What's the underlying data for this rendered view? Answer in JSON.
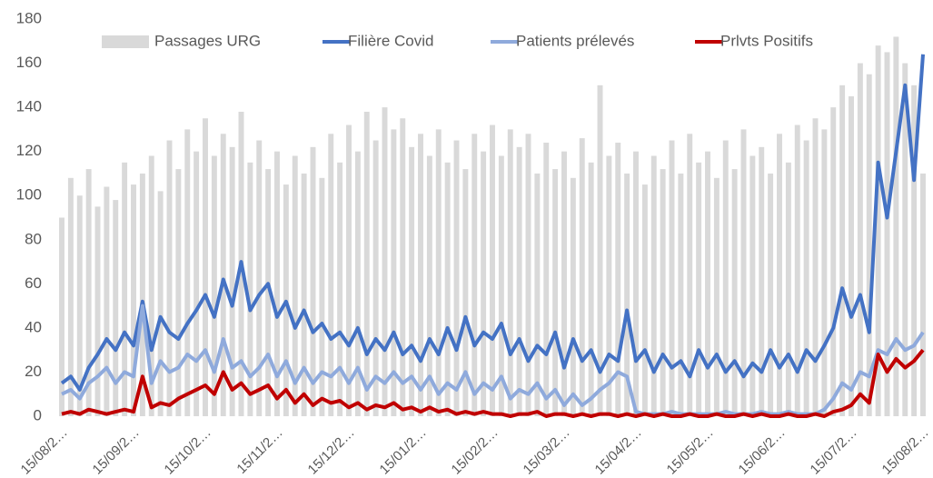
{
  "chart_data": {
    "type": "combo",
    "categories": [
      "15/08/2…",
      null,
      null,
      null,
      null,
      null,
      null,
      null,
      "15/09/2…",
      null,
      null,
      null,
      null,
      null,
      null,
      null,
      "15/10/2…",
      null,
      null,
      null,
      null,
      null,
      null,
      null,
      "15/11/2…",
      null,
      null,
      null,
      null,
      null,
      null,
      null,
      "15/12/2…",
      null,
      null,
      null,
      null,
      null,
      null,
      null,
      "15/01/2…",
      null,
      null,
      null,
      null,
      null,
      null,
      null,
      "15/02/2…",
      null,
      null,
      null,
      null,
      null,
      null,
      null,
      "15/03/2…",
      null,
      null,
      null,
      null,
      null,
      null,
      null,
      "15/04/2…",
      null,
      null,
      null,
      null,
      null,
      null,
      null,
      "15/05/2…",
      null,
      null,
      null,
      null,
      null,
      null,
      null,
      "15/06/2…",
      null,
      null,
      null,
      null,
      null,
      null,
      null,
      "15/07/2…",
      null,
      null,
      null,
      null,
      null,
      null,
      null,
      "15/08/2…"
    ],
    "series": [
      {
        "name": "Passages URG",
        "type": "bar",
        "color": "#d9d9d9",
        "values": [
          90,
          108,
          100,
          112,
          95,
          104,
          98,
          115,
          105,
          110,
          118,
          102,
          125,
          112,
          130,
          120,
          135,
          118,
          128,
          122,
          138,
          115,
          125,
          112,
          120,
          105,
          118,
          110,
          122,
          108,
          128,
          115,
          132,
          120,
          138,
          125,
          140,
          130,
          135,
          122,
          128,
          118,
          130,
          115,
          125,
          112,
          128,
          120,
          132,
          118,
          130,
          122,
          128,
          110,
          124,
          112,
          120,
          108,
          126,
          115,
          150,
          118,
          124,
          110,
          120,
          105,
          118,
          112,
          125,
          110,
          128,
          115,
          120,
          108,
          125,
          112,
          130,
          118,
          122,
          110,
          128,
          115,
          132,
          125,
          135,
          130,
          140,
          150,
          145,
          160,
          155,
          168,
          165,
          172,
          160,
          150,
          110
        ]
      },
      {
        "name": "Filière Covid",
        "type": "line",
        "color": "#4472c4",
        "values": [
          15,
          18,
          12,
          22,
          28,
          35,
          30,
          38,
          32,
          52,
          30,
          45,
          38,
          35,
          42,
          48,
          55,
          45,
          62,
          50,
          70,
          48,
          55,
          60,
          45,
          52,
          40,
          48,
          38,
          42,
          35,
          38,
          32,
          40,
          28,
          35,
          30,
          38,
          28,
          32,
          25,
          35,
          28,
          40,
          30,
          45,
          32,
          38,
          35,
          42,
          28,
          35,
          25,
          32,
          28,
          38,
          22,
          35,
          25,
          30,
          20,
          28,
          25,
          48,
          25,
          30,
          20,
          28,
          22,
          25,
          18,
          30,
          22,
          28,
          20,
          25,
          18,
          24,
          20,
          30,
          22,
          28,
          20,
          30,
          25,
          32,
          40,
          58,
          45,
          55,
          38,
          115,
          90,
          120,
          150,
          107,
          164
        ]
      },
      {
        "name": "Patients prélevés",
        "type": "line",
        "color": "#8faadc",
        "values": [
          10,
          12,
          8,
          15,
          18,
          22,
          15,
          20,
          18,
          50,
          15,
          25,
          20,
          22,
          28,
          25,
          30,
          20,
          35,
          22,
          25,
          18,
          22,
          28,
          18,
          25,
          15,
          22,
          15,
          20,
          18,
          22,
          15,
          22,
          12,
          18,
          15,
          20,
          15,
          18,
          12,
          18,
          10,
          15,
          12,
          20,
          10,
          15,
          12,
          18,
          8,
          12,
          10,
          15,
          8,
          12,
          5,
          10,
          5,
          8,
          12,
          15,
          20,
          18,
          2,
          1,
          1,
          1,
          2,
          1,
          1,
          1,
          1,
          1,
          2,
          1,
          1,
          1,
          2,
          1,
          1,
          2,
          1,
          1,
          1,
          3,
          8,
          15,
          12,
          20,
          18,
          30,
          28,
          35,
          30,
          32,
          38
        ]
      },
      {
        "name": "Prlvts Positifs",
        "type": "line",
        "color": "#c00000",
        "values": [
          1,
          2,
          1,
          3,
          2,
          1,
          2,
          3,
          2,
          18,
          4,
          6,
          5,
          8,
          10,
          12,
          14,
          10,
          20,
          12,
          15,
          10,
          12,
          14,
          8,
          12,
          6,
          10,
          5,
          8,
          6,
          7,
          4,
          6,
          3,
          5,
          4,
          6,
          3,
          4,
          2,
          4,
          2,
          3,
          1,
          2,
          1,
          2,
          1,
          1,
          0,
          1,
          1,
          2,
          0,
          1,
          1,
          0,
          1,
          0,
          1,
          1,
          0,
          1,
          0,
          1,
          0,
          1,
          0,
          0,
          1,
          0,
          0,
          1,
          0,
          0,
          1,
          0,
          1,
          0,
          0,
          1,
          0,
          0,
          1,
          0,
          2,
          3,
          5,
          10,
          6,
          28,
          20,
          26,
          22,
          25,
          30
        ]
      }
    ],
    "ylim": [
      0,
      180
    ],
    "yticks": [
      0,
      20,
      40,
      60,
      80,
      100,
      120,
      140,
      160,
      180
    ],
    "grid": false,
    "legend": "top"
  }
}
